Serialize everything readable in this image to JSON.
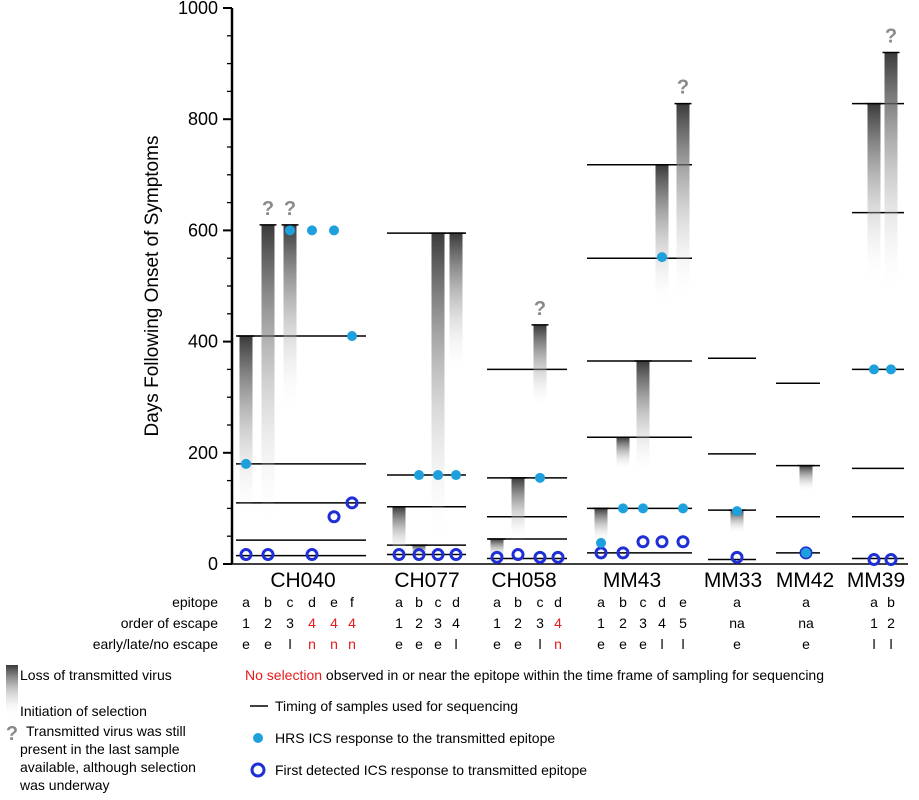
{
  "chart_data": {
    "type": "bar",
    "ylabel": "Days Following Onset of Symptoms",
    "ylim": [
      0,
      1000
    ],
    "yticks": [
      0,
      200,
      400,
      600,
      800,
      1000
    ],
    "row_headers": [
      "epitope",
      "order of escape",
      "early/late/no escape"
    ],
    "colors": {
      "hrs_dot": "#1ea0dc",
      "first_ring": "#1f2fd6",
      "no_selection_red": "#e41a1c",
      "bar_dark": "#3a3a3a",
      "question_gray": "#8a8a8a"
    },
    "groups": [
      {
        "name": "CH040",
        "sample_timepoints": [
          15,
          43,
          110,
          180,
          410
        ],
        "epitopes": [
          {
            "epitope": "a",
            "order": "1",
            "escape": "e",
            "no_selection": false,
            "selection_start": 80,
            "loss": 410,
            "question": false,
            "hrs": 180,
            "first": 17
          },
          {
            "epitope": "b",
            "order": "2",
            "escape": "e",
            "no_selection": false,
            "selection_start": 60,
            "loss": 610,
            "question": true,
            "hrs": null,
            "first": 17
          },
          {
            "epitope": "c",
            "order": "3",
            "escape": "l",
            "no_selection": false,
            "selection_start": 270,
            "loss": 610,
            "question": true,
            "hrs": 600,
            "first": null
          },
          {
            "epitope": "d",
            "order": "4",
            "escape": "n",
            "no_selection": true,
            "selection_start": null,
            "loss": null,
            "question": false,
            "hrs": 600,
            "first": 17
          },
          {
            "epitope": "e",
            "order": "4",
            "escape": "n",
            "no_selection": true,
            "selection_start": null,
            "loss": null,
            "question": false,
            "hrs": 600,
            "first": 85
          },
          {
            "epitope": "f",
            "order": "4",
            "escape": "n",
            "no_selection": true,
            "selection_start": null,
            "loss": null,
            "question": false,
            "hrs": 410,
            "first": 110
          }
        ]
      },
      {
        "name": "CH077",
        "sample_timepoints": [
          17,
          34,
          103,
          160,
          595
        ],
        "epitopes": [
          {
            "epitope": "a",
            "order": "1",
            "escape": "e",
            "no_selection": false,
            "selection_start": 15,
            "loss": 103,
            "question": false,
            "hrs": null,
            "first": 17
          },
          {
            "epitope": "b",
            "order": "2",
            "escape": "e",
            "no_selection": false,
            "selection_start": 15,
            "loss": 34,
            "question": false,
            "hrs": 160,
            "first": 17
          },
          {
            "epitope": "c",
            "order": "3",
            "escape": "e",
            "no_selection": false,
            "selection_start": 30,
            "loss": 595,
            "question": false,
            "hrs": 160,
            "first": 17
          },
          {
            "epitope": "d",
            "order": "4",
            "escape": "l",
            "no_selection": false,
            "selection_start": 340,
            "loss": 595,
            "question": false,
            "hrs": 160,
            "first": 17
          }
        ]
      },
      {
        "name": "CH058",
        "sample_timepoints": [
          10,
          45,
          85,
          155,
          350
        ],
        "epitopes": [
          {
            "epitope": "a",
            "order": "1",
            "escape": "e",
            "no_selection": false,
            "selection_start": 10,
            "loss": 45,
            "question": false,
            "hrs": null,
            "first": 12
          },
          {
            "epitope": "b",
            "order": "2",
            "escape": "e",
            "no_selection": false,
            "selection_start": 40,
            "loss": 155,
            "question": false,
            "hrs": null,
            "first": 17
          },
          {
            "epitope": "c",
            "order": "3",
            "escape": "l",
            "no_selection": false,
            "selection_start": 280,
            "loss": 430,
            "question": true,
            "hrs": 155,
            "first": 12
          },
          {
            "epitope": "d",
            "order": "4",
            "escape": "n",
            "no_selection": true,
            "selection_start": null,
            "loss": null,
            "question": false,
            "hrs": null,
            "first": 12
          }
        ]
      },
      {
        "name": "MM43",
        "sample_timepoints": [
          20,
          100,
          228,
          365,
          550,
          718
        ],
        "epitopes": [
          {
            "epitope": "a",
            "order": "1",
            "escape": "e",
            "no_selection": false,
            "selection_start": 40,
            "loss": 100,
            "question": false,
            "hrs": 38,
            "first": 20
          },
          {
            "epitope": "b",
            "order": "2",
            "escape": "e",
            "no_selection": false,
            "selection_start": 170,
            "loss": 228,
            "question": false,
            "hrs": 100,
            "first": 20
          },
          {
            "epitope": "c",
            "order": "3",
            "escape": "e",
            "no_selection": false,
            "selection_start": 160,
            "loss": 365,
            "question": false,
            "hrs": 100,
            "first": 40
          },
          {
            "epitope": "d",
            "order": "4",
            "escape": "l",
            "no_selection": false,
            "selection_start": 460,
            "loss": 718,
            "question": false,
            "hrs": 552,
            "first": 40
          },
          {
            "epitope": "e",
            "order": "5",
            "escape": "l",
            "no_selection": false,
            "selection_start": 470,
            "loss": 828,
            "question": true,
            "hrs": 100,
            "first": 40
          }
        ]
      },
      {
        "name": "MM33",
        "sample_timepoints": [
          8,
          97,
          198,
          370
        ],
        "epitopes": [
          {
            "epitope": "a",
            "order": "na",
            "escape": "e",
            "no_selection": false,
            "selection_start": 55,
            "loss": 97,
            "question": false,
            "hrs": 95,
            "first": 12
          }
        ]
      },
      {
        "name": "MM42",
        "sample_timepoints": [
          20,
          85,
          177,
          325
        ],
        "epitopes": [
          {
            "epitope": "a",
            "order": "na",
            "escape": "e",
            "no_selection": false,
            "selection_start": 130,
            "loss": 177,
            "question": false,
            "hrs": 20,
            "first": 20
          }
        ]
      },
      {
        "name": "MM39",
        "sample_timepoints": [
          10,
          85,
          172,
          350,
          632,
          828
        ],
        "epitopes": [
          {
            "epitope": "a",
            "order": "1",
            "escape": "l",
            "no_selection": false,
            "selection_start": 500,
            "loss": 828,
            "question": false,
            "hrs": 350,
            "first": 8
          },
          {
            "epitope": "b",
            "order": "2",
            "escape": "l",
            "no_selection": false,
            "selection_start": 480,
            "loss": 920,
            "question": true,
            "hrs": 350,
            "first": 8
          }
        ]
      }
    ],
    "legend": {
      "gradient_top": "Loss of transmitted virus",
      "gradient_bottom": "Initiation of selection",
      "question_text": [
        "Transmitted virus was still",
        "present in the last sample",
        "available, although selection",
        "was underway"
      ],
      "no_selection_red": "No selection",
      "no_selection_rest": " observed in or near the epitope within the time frame of sampling for sequencing",
      "timing_line": "Timing of samples used for sequencing",
      "hrs_dot": "HRS ICS response to the transmitted epitope",
      "first_ring": "First detected ICS response to transmitted epitope",
      "question_symbol": "?"
    }
  }
}
